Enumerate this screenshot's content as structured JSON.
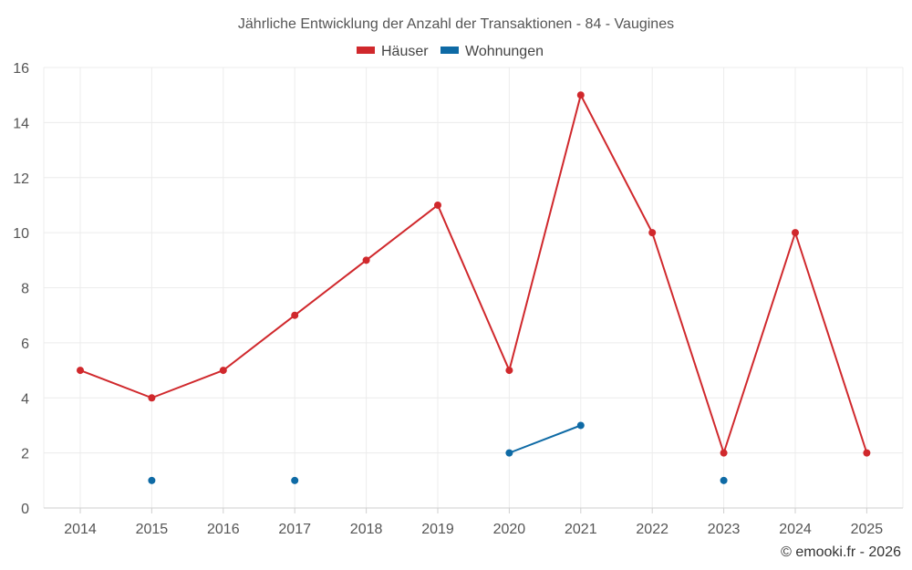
{
  "chart_data": {
    "type": "line",
    "title": "Jährliche Entwicklung der Anzahl der Transaktionen - 84 - Vaugines",
    "categories": [
      "2014",
      "2015",
      "2016",
      "2017",
      "2018",
      "2019",
      "2020",
      "2021",
      "2022",
      "2023",
      "2024",
      "2025"
    ],
    "ylim": [
      0,
      16
    ],
    "yticks": [
      0,
      2,
      4,
      6,
      8,
      10,
      12,
      14,
      16
    ],
    "grid": true,
    "legend_position": "top-center",
    "series": [
      {
        "name": "Häuser",
        "color": "#d0282c",
        "values": [
          5,
          4,
          5,
          7,
          9,
          11,
          5,
          15,
          10,
          2,
          10,
          2
        ]
      },
      {
        "name": "Wohnungen",
        "color": "#0e6aa5",
        "values": [
          null,
          1,
          null,
          1,
          null,
          null,
          2,
          3,
          null,
          1,
          null,
          null
        ]
      }
    ]
  },
  "credit": "© emooki.fr - 2026"
}
